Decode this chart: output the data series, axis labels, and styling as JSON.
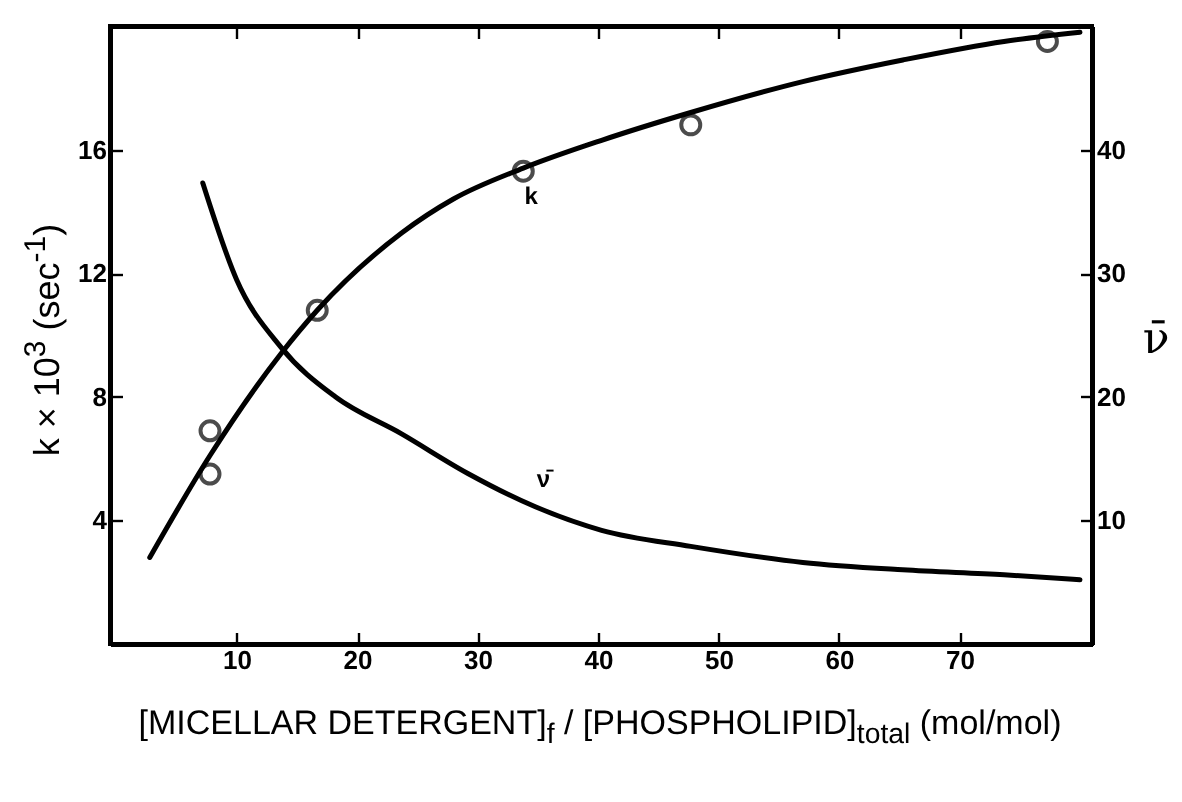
{
  "chart_data": {
    "type": "line",
    "xlabel": "[MICELLAR DETERGENT]$_{f}$ / [PHOSPHOLIPID]$_{total}$ (mol/mol)",
    "ylabel": "k × 10$^{3}$ (sec$^{-1}$)",
    "y2label": "ν̄",
    "series": [
      {
        "type": "scatter",
        "marker": "circle",
        "color": "#000000",
        "x": [
          7.8,
          7.8,
          16.7,
          33.8,
          47.7,
          77.3
        ],
        "values": [
          6.9,
          5.5,
          10.8,
          15.3,
          16.8,
          19.5
        ]
      },
      {
        "marker": "none",
        "name": "k",
        "color": "#000000",
        "x": [
          2.8,
          7.8,
          13.7,
          16.7,
          23.7,
          28,
          33.8,
          40.3,
          47.7,
          57,
          65.3,
          73.7,
          80
        ],
        "values": [
          2.8,
          6.1,
          9.4,
          10.8,
          13.3,
          14.4,
          15.4,
          16.3,
          17.2,
          18.2,
          18.9,
          19.5,
          19.8
        ]
      },
      {
        "marker": "none",
        "name": "ν̄",
        "axis": "y2",
        "color": "#000000",
        "x": [
          7.2,
          10,
          13.7,
          18.2,
          23.7,
          29.2,
          34.8,
          40.3,
          47.7,
          57,
          65.3,
          73.7,
          80
        ],
        "values": [
          37.3,
          29.5,
          24,
          20,
          17,
          13.8,
          11.1,
          9.2,
          7.9,
          6.6,
          6,
          5.6,
          5.2
        ]
      }
    ],
    "xlim": [
      -0.5,
      81
    ],
    "xticks": [
      10,
      20,
      30,
      40,
      50,
      60,
      70
    ],
    "ylim": [
      0,
      20
    ],
    "yticks": [
      4,
      8,
      12,
      16
    ],
    "y2lim": [
      0,
      50
    ],
    "y2ticks": [
      10,
      20,
      30,
      40
    ],
    "line_style": "solid",
    "grid": false
  }
}
